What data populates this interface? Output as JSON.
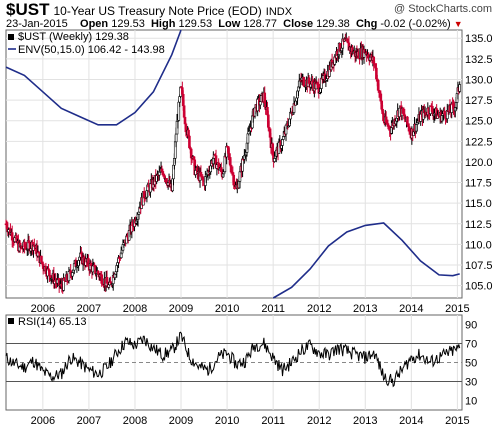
{
  "header": {
    "symbol": "$UST",
    "subtitle": "10-Year US Treasury Note Price (EOD)",
    "exchange": "INDX",
    "watermark": "@ StockCharts.com",
    "date": "23-Jan-2015",
    "open_label": "Open",
    "open": "129.53",
    "high_label": "High",
    "high": "129.53",
    "low_label": "Low",
    "low": "128.77",
    "close_label": "Close",
    "close": "129.38",
    "chg_label": "Chg",
    "chg": "-0.02 (-0.02%)"
  },
  "colors": {
    "up": "#000000",
    "down": "#cc0033",
    "envelope": "#1f2d8a",
    "rsi": "#000000"
  },
  "chart_data": [
    {
      "type": "candlestick",
      "legend": [
        {
          "text": "$UST (Weekly) 129.38",
          "style": "price"
        },
        {
          "text": "ENV(50,15.0) 106.42 - 143.98",
          "style": "envelope"
        }
      ],
      "x_ticks": [
        "2006",
        "2007",
        "2008",
        "2009",
        "2010",
        "2011",
        "2012",
        "2013",
        "2014",
        "2015"
      ],
      "y_ticks": [
        "105.0",
        "107.5",
        "110.0",
        "112.5",
        "115.0",
        "117.5",
        "120.0",
        "122.5",
        "125.0",
        "127.5",
        "130.0",
        "132.5",
        "135.0"
      ],
      "ylim": [
        103.5,
        136.0
      ],
      "xlim": [
        2005.2,
        2015.1
      ],
      "series": [
        {
          "name": "$UST",
          "x": [
            2005.2,
            2005.5,
            2005.8,
            2006.0,
            2006.2,
            2006.4,
            2006.55,
            2006.8,
            2007.0,
            2007.2,
            2007.45,
            2007.6,
            2007.8,
            2008.0,
            2008.2,
            2008.4,
            2008.6,
            2008.8,
            2008.9,
            2009.0,
            2009.1,
            2009.3,
            2009.5,
            2009.7,
            2009.9,
            2010.0,
            2010.2,
            2010.4,
            2010.6,
            2010.8,
            2010.9,
            2011.0,
            2011.2,
            2011.4,
            2011.6,
            2011.8,
            2012.0,
            2012.2,
            2012.4,
            2012.55,
            2012.8,
            2013.0,
            2013.2,
            2013.4,
            2013.55,
            2013.75,
            2014.0,
            2014.2,
            2014.4,
            2014.6,
            2014.8,
            2014.95,
            2015.05
          ],
          "y": [
            112.5,
            109.5,
            110.0,
            107.5,
            106.0,
            104.8,
            106.0,
            108.5,
            107.5,
            106.5,
            104.8,
            107.5,
            110.5,
            113.0,
            116.0,
            117.5,
            119.0,
            116.5,
            124.0,
            129.0,
            124.5,
            119.0,
            117.5,
            120.5,
            118.5,
            121.5,
            116.5,
            121.5,
            126.5,
            128.0,
            124.5,
            120.5,
            122.5,
            126.0,
            130.0,
            129.5,
            129.0,
            131.0,
            133.5,
            134.5,
            133.0,
            133.5,
            132.0,
            125.0,
            124.0,
            126.5,
            123.5,
            125.5,
            126.5,
            125.5,
            126.0,
            126.8,
            129.38
          ]
        },
        {
          "name": "ENV upper",
          "x": [
            2005.2,
            2005.6,
            2006.0,
            2006.4,
            2006.8,
            2007.2,
            2007.6,
            2008.0,
            2008.4,
            2008.8,
            2009.0
          ],
          "y": [
            131.5,
            130.5,
            128.5,
            126.5,
            125.5,
            124.5,
            124.5,
            126.0,
            128.5,
            133.0,
            136.0
          ]
        },
        {
          "name": "ENV lower",
          "x": [
            2011.0,
            2011.4,
            2011.8,
            2012.2,
            2012.6,
            2013.0,
            2013.4,
            2013.8,
            2014.2,
            2014.6,
            2014.9,
            2015.05
          ],
          "y": [
            103.5,
            104.8,
            107.0,
            109.8,
            111.5,
            112.3,
            112.6,
            110.5,
            108.0,
            106.3,
            106.2,
            106.42
          ]
        }
      ]
    },
    {
      "type": "line",
      "legend": [
        {
          "text": "RSI(14) 65.13"
        }
      ],
      "x_ticks": [
        "2006",
        "2007",
        "2008",
        "2009",
        "2010",
        "2011",
        "2012",
        "2013",
        "2014",
        "2015"
      ],
      "y_ticks": [
        "10",
        "30",
        "50",
        "70",
        "90"
      ],
      "ylim": [
        0,
        100
      ],
      "reference_lines": [
        30,
        50,
        70
      ],
      "series": [
        {
          "name": "RSI(14)",
          "x": [
            2005.2,
            2005.4,
            2005.6,
            2005.8,
            2006.0,
            2006.2,
            2006.4,
            2006.6,
            2006.8,
            2007.0,
            2007.2,
            2007.4,
            2007.6,
            2007.8,
            2008.0,
            2008.2,
            2008.4,
            2008.6,
            2008.8,
            2009.0,
            2009.2,
            2009.4,
            2009.6,
            2009.8,
            2010.0,
            2010.2,
            2010.4,
            2010.6,
            2010.8,
            2011.0,
            2011.2,
            2011.4,
            2011.6,
            2011.8,
            2012.0,
            2012.2,
            2012.4,
            2012.6,
            2012.8,
            2013.0,
            2013.2,
            2013.4,
            2013.6,
            2013.8,
            2014.0,
            2014.2,
            2014.4,
            2014.6,
            2014.8,
            2015.05
          ],
          "y": [
            55,
            48,
            45,
            52,
            40,
            35,
            38,
            55,
            50,
            42,
            38,
            45,
            60,
            72,
            68,
            75,
            65,
            58,
            62,
            78,
            55,
            45,
            42,
            55,
            60,
            48,
            52,
            68,
            70,
            55,
            42,
            50,
            62,
            68,
            60,
            58,
            65,
            62,
            58,
            55,
            60,
            35,
            30,
            42,
            55,
            58,
            50,
            55,
            60,
            65.13
          ]
        }
      ]
    }
  ]
}
